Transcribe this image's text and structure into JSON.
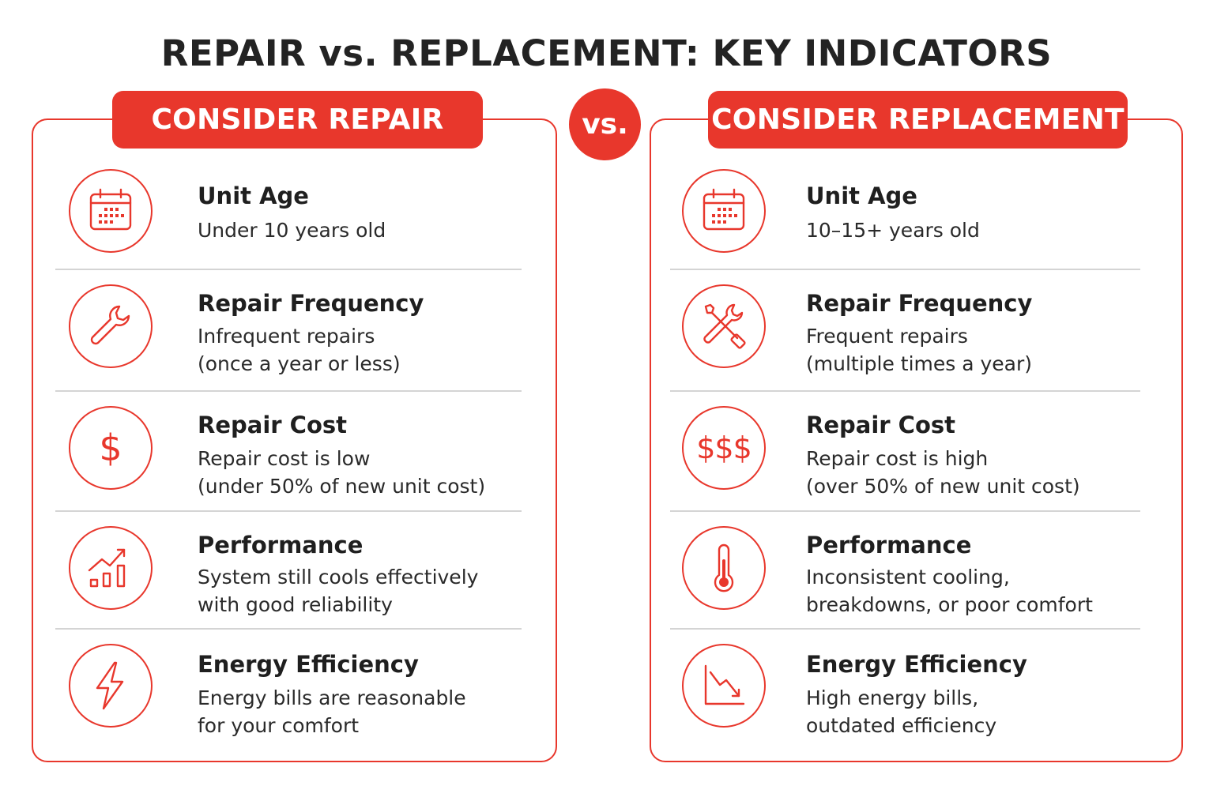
{
  "title": "REPAIR vs. REPLACEMENT: KEY INDICATORS",
  "vs_label": "vs.",
  "accent_color": "#e8372c",
  "repair": {
    "header": "CONSIDER REPAIR",
    "items": [
      {
        "icon": "calendar-icon",
        "title": "Unit Age",
        "desc": "Under 10 years old"
      },
      {
        "icon": "wrench-icon",
        "title": "Repair Frequency",
        "desc": "Infrequent repairs\n(once a year or less)"
      },
      {
        "icon": "dollar-icon",
        "glyph": "$",
        "title": "Repair Cost",
        "desc": "Repair cost is low\n(under 50% of new unit cost)"
      },
      {
        "icon": "rising-chart-icon",
        "title": "Performance",
        "desc": "System still cools effectively\nwith good reliability"
      },
      {
        "icon": "lightning-icon",
        "title": "Energy Efficiency",
        "desc": "Energy bills are reasonable\nfor your comfort"
      }
    ]
  },
  "replacement": {
    "header": "CONSIDER REPLACEMENT",
    "items": [
      {
        "icon": "calendar-icon",
        "title": "Unit Age",
        "desc": "10–15+ years old"
      },
      {
        "icon": "crossed-tools-icon",
        "title": "Repair Frequency",
        "desc": "Frequent repairs\n(multiple times a year)"
      },
      {
        "icon": "triple-dollar-icon",
        "glyph": "$$$",
        "title": "Repair Cost",
        "desc": "Repair cost is high\n(over 50% of new unit cost)"
      },
      {
        "icon": "thermometer-icon",
        "title": "Performance",
        "desc": "Inconsistent cooling,\nbreakdowns, or poor comfort"
      },
      {
        "icon": "declining-chart-icon",
        "title": "Energy Efficiency",
        "desc": "High energy bills,\noutdated efficiency"
      }
    ]
  }
}
